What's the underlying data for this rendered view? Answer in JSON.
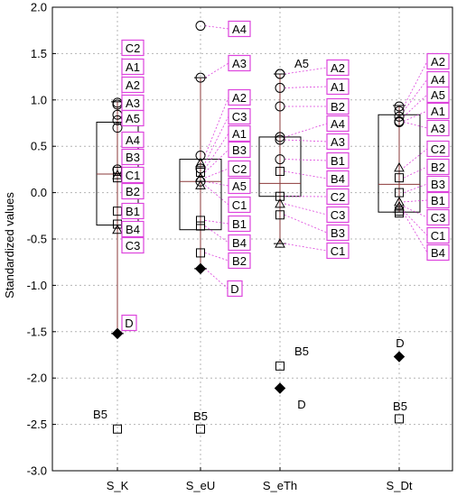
{
  "chart_data": {
    "type": "box",
    "ylabel": "Standardized values",
    "ylim": [
      -3.0,
      2.0
    ],
    "yticks": [
      2.0,
      1.5,
      1.0,
      0.5,
      0.0,
      -0.5,
      -1.0,
      -1.5,
      -2.0,
      -2.5,
      -3.0
    ],
    "grid": true,
    "colors": {
      "box": "#8B3A3A",
      "label_border": "#DD44DD",
      "connector": "#DD44DD",
      "grid": "#B4B4B4"
    },
    "categories": [
      "S_K",
      "S_eU",
      "S_eTh",
      "S_Dt"
    ],
    "series": [
      {
        "name": "S_K",
        "box": {
          "q1": -0.35,
          "median": 0.2,
          "q3": 0.76,
          "whisker_low": -1.52,
          "whisker_high": 0.98
        },
        "points": [
          {
            "label": "C2",
            "value": 0.97,
            "marker": "circle",
            "boxed": true
          },
          {
            "label": "A1",
            "value": 0.95,
            "marker": "circle",
            "boxed": true
          },
          {
            "label": "A2",
            "value": 0.84,
            "marker": "circle",
            "boxed": true
          },
          {
            "label": "A3",
            "value": 0.78,
            "marker": "circle",
            "boxed": true
          },
          {
            "label": "A5",
            "value": 0.7,
            "marker": "circle",
            "boxed": true
          },
          {
            "label": "A4",
            "value": 0.25,
            "marker": "circle",
            "boxed": true
          },
          {
            "label": "B3",
            "value": 0.23,
            "marker": "square",
            "boxed": true
          },
          {
            "label": "C1",
            "value": 0.19,
            "marker": "triangle",
            "boxed": true
          },
          {
            "label": "B2",
            "value": 0.16,
            "marker": "square",
            "boxed": true
          },
          {
            "label": "B1",
            "value": -0.2,
            "marker": "square",
            "boxed": true
          },
          {
            "label": "B4",
            "value": -0.34,
            "marker": "square",
            "boxed": true
          },
          {
            "label": "C3",
            "value": -0.4,
            "marker": "triangle",
            "boxed": true
          },
          {
            "label": "D",
            "value": -1.52,
            "marker": "diamond",
            "boxed": true
          },
          {
            "label": "B5",
            "value": -2.55,
            "marker": "square",
            "boxed": false
          }
        ]
      },
      {
        "name": "S_eU",
        "box": {
          "q1": -0.4,
          "median": 0.12,
          "q3": 0.36,
          "whisker_low": -0.82,
          "whisker_high": 1.24
        },
        "points": [
          {
            "label": "A4",
            "value": 1.8,
            "marker": "circle",
            "boxed": true
          },
          {
            "label": "A3",
            "value": 1.24,
            "marker": "circle",
            "boxed": true
          },
          {
            "label": "A2",
            "value": 0.4,
            "marker": "circle",
            "boxed": true
          },
          {
            "label": "C3",
            "value": 0.32,
            "marker": "triangle",
            "boxed": true
          },
          {
            "label": "A1",
            "value": 0.26,
            "marker": "circle",
            "boxed": true
          },
          {
            "label": "B3",
            "value": 0.22,
            "marker": "square",
            "boxed": true
          },
          {
            "label": "C2",
            "value": 0.16,
            "marker": "triangle",
            "boxed": true
          },
          {
            "label": "A5",
            "value": 0.12,
            "marker": "circle",
            "boxed": true
          },
          {
            "label": "C1",
            "value": 0.08,
            "marker": "triangle",
            "boxed": true
          },
          {
            "label": "B1",
            "value": -0.3,
            "marker": "square",
            "boxed": true
          },
          {
            "label": "B4",
            "value": -0.36,
            "marker": "square",
            "boxed": true
          },
          {
            "label": "B2",
            "value": -0.65,
            "marker": "square",
            "boxed": true
          },
          {
            "label": "D",
            "value": -0.82,
            "marker": "diamond",
            "boxed": true
          },
          {
            "label": "B5",
            "value": -2.55,
            "marker": "square",
            "boxed": false
          }
        ]
      },
      {
        "name": "S_eTh",
        "box": {
          "q1": -0.04,
          "median": 0.1,
          "q3": 0.6,
          "whisker_low": -0.55,
          "whisker_high": 1.28
        },
        "points": [
          {
            "label": "A5",
            "value": 1.28,
            "marker": "circle",
            "boxed": false
          },
          {
            "label": "A2",
            "value": 1.28,
            "marker": "circle",
            "boxed": true
          },
          {
            "label": "A1",
            "value": 1.13,
            "marker": "circle",
            "boxed": true
          },
          {
            "label": "B2",
            "value": 0.93,
            "marker": "circle",
            "boxed": true
          },
          {
            "label": "A4",
            "value": 0.6,
            "marker": "circle",
            "boxed": true
          },
          {
            "label": "A3",
            "value": 0.57,
            "marker": "circle",
            "boxed": true
          },
          {
            "label": "B1",
            "value": 0.36,
            "marker": "circle",
            "boxed": true
          },
          {
            "label": "B4",
            "value": 0.23,
            "marker": "square",
            "boxed": true
          },
          {
            "label": "C2",
            "value": -0.04,
            "marker": "square",
            "boxed": true
          },
          {
            "label": "C3",
            "value": -0.12,
            "marker": "triangle",
            "boxed": true
          },
          {
            "label": "B3",
            "value": -0.24,
            "marker": "square",
            "boxed": true
          },
          {
            "label": "C1",
            "value": -0.55,
            "marker": "triangle",
            "boxed": true
          },
          {
            "label": "B5",
            "value": -1.87,
            "marker": "square",
            "boxed": false
          },
          {
            "label": "D",
            "value": -2.11,
            "marker": "diamond",
            "boxed": false
          }
        ]
      },
      {
        "name": "S_Dt",
        "box": {
          "q1": -0.21,
          "median": 0.09,
          "q3": 0.84,
          "whisker_low": -0.21,
          "whisker_high": 0.94
        },
        "points": [
          {
            "label": "A2",
            "value": 0.93,
            "marker": "circle",
            "boxed": true
          },
          {
            "label": "A4",
            "value": 0.88,
            "marker": "circle",
            "boxed": true
          },
          {
            "label": "A5",
            "value": 0.82,
            "marker": "circle",
            "boxed": true
          },
          {
            "label": "A1",
            "value": 0.77,
            "marker": "circle",
            "boxed": true
          },
          {
            "label": "A3",
            "value": 0.76,
            "marker": "circle",
            "boxed": true
          },
          {
            "label": "C2",
            "value": 0.27,
            "marker": "triangle",
            "boxed": true
          },
          {
            "label": "B2",
            "value": 0.16,
            "marker": "square",
            "boxed": true
          },
          {
            "label": "B3",
            "value": 0.0,
            "marker": "square",
            "boxed": true
          },
          {
            "label": "B1",
            "value": -0.1,
            "marker": "triangle",
            "boxed": true
          },
          {
            "label": "C3",
            "value": -0.15,
            "marker": "triangle",
            "boxed": true
          },
          {
            "label": "C1",
            "value": -0.2,
            "marker": "square",
            "boxed": true
          },
          {
            "label": "B4",
            "value": -0.22,
            "marker": "square",
            "boxed": true
          },
          {
            "label": "D",
            "value": -1.77,
            "marker": "diamond",
            "boxed": false
          },
          {
            "label": "B5",
            "value": -2.44,
            "marker": "square",
            "boxed": false
          }
        ]
      }
    ]
  }
}
